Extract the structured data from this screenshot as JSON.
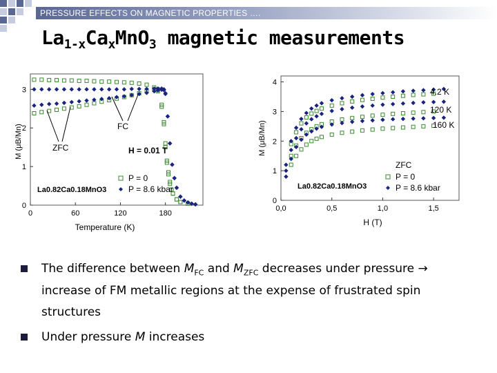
{
  "header": {
    "text": "PRESSURE EFFECTS ON MAGNETIC PROPERTIES …."
  },
  "title": {
    "prefix": "La",
    "sub1": "1-x",
    "mid": "Ca",
    "sub2": "x",
    "suffix": "MnO",
    "sub3": "3",
    "rest": " magnetic measurements"
  },
  "colors": {
    "p0": "#3a8a2e",
    "p86": "#1a237e",
    "accent": "#5a6794"
  },
  "chart_data": [
    {
      "type": "scatter",
      "xlabel": "Temperature (K)",
      "ylabel": "M (μB/Mn)",
      "xticks": [
        "0",
        "60",
        "120",
        "180"
      ],
      "yticks": [
        "0",
        "1",
        "2",
        "3"
      ],
      "xlim": [
        0,
        230
      ],
      "ylim": [
        0,
        3.4
      ],
      "annotations": {
        "zfc": "ZFC",
        "fc": "FC",
        "field": "H = 0.01 T",
        "compound": "La0.82Ca0.18MnO3"
      },
      "legend": {
        "position": "bottom-right",
        "entries": [
          "P = 0",
          "P = 8.6 kbar"
        ]
      },
      "series": [
        {
          "name": "P = 0",
          "label": "FC",
          "marker": "open-square",
          "color": "#3a8a2e",
          "x": [
            5,
            15,
            25,
            35,
            45,
            55,
            65,
            75,
            85,
            95,
            105,
            115,
            125,
            135,
            145,
            155,
            165,
            170,
            175,
            178,
            180,
            182,
            184,
            186,
            188,
            190,
            195,
            200,
            210
          ],
          "y": [
            3.25,
            3.25,
            3.24,
            3.24,
            3.23,
            3.23,
            3.22,
            3.22,
            3.21,
            3.2,
            3.2,
            3.19,
            3.18,
            3.17,
            3.15,
            3.12,
            3.05,
            2.95,
            2.55,
            2.1,
            1.5,
            1.1,
            0.8,
            0.55,
            0.4,
            0.3,
            0.15,
            0.08,
            0.04
          ]
        },
        {
          "name": "P = 0",
          "label": "ZFC",
          "marker": "open-square",
          "color": "#3a8a2e",
          "x": [
            5,
            15,
            25,
            35,
            45,
            55,
            65,
            75,
            85,
            95,
            105,
            115,
            125,
            135,
            145,
            155,
            165,
            170,
            175,
            178,
            180,
            182,
            184,
            186,
            188,
            190,
            195,
            200,
            210
          ],
          "y": [
            2.38,
            2.41,
            2.44,
            2.47,
            2.5,
            2.53,
            2.56,
            2.6,
            2.64,
            2.68,
            2.72,
            2.76,
            2.8,
            2.85,
            2.9,
            2.95,
            3.0,
            3.0,
            2.6,
            2.15,
            1.6,
            1.15,
            0.85,
            0.6,
            0.4,
            0.3,
            0.15,
            0.08,
            0.04
          ]
        },
        {
          "name": "P = 8.6 kbar",
          "label": "FC",
          "marker": "filled-diamond",
          "color": "#1a237e",
          "x": [
            5,
            15,
            25,
            35,
            45,
            55,
            65,
            75,
            85,
            95,
            105,
            115,
            125,
            135,
            145,
            155,
            165,
            170,
            175,
            178,
            180,
            183,
            186,
            189,
            192,
            195,
            200,
            205,
            210,
            215,
            220
          ],
          "y": [
            3.0,
            3.0,
            3.0,
            3.0,
            3.0,
            3.0,
            3.0,
            3.0,
            3.0,
            3.0,
            3.0,
            3.0,
            3.0,
            3.01,
            3.01,
            3.01,
            3.02,
            3.02,
            3.02,
            3.0,
            2.9,
            2.3,
            1.6,
            1.05,
            0.7,
            0.45,
            0.22,
            0.12,
            0.07,
            0.04,
            0.02
          ]
        },
        {
          "name": "P = 8.6 kbar",
          "label": "ZFC",
          "marker": "filled-diamond",
          "color": "#1a237e",
          "x": [
            5,
            15,
            25,
            35,
            45,
            55,
            65,
            75,
            85,
            95,
            105,
            115,
            125,
            135,
            145,
            155,
            165,
            170,
            175,
            178,
            180,
            183,
            186,
            189,
            192,
            195,
            200,
            205,
            210,
            215,
            220
          ],
          "y": [
            2.58,
            2.6,
            2.62,
            2.63,
            2.65,
            2.67,
            2.69,
            2.71,
            2.73,
            2.75,
            2.77,
            2.8,
            2.82,
            2.85,
            2.88,
            2.91,
            2.95,
            2.97,
            2.99,
            2.98,
            2.88,
            2.3,
            1.6,
            1.05,
            0.7,
            0.45,
            0.22,
            0.12,
            0.07,
            0.04,
            0.02
          ]
        }
      ]
    },
    {
      "type": "scatter",
      "xlabel": "H (T)",
      "ylabel": "M (μB/Mn)",
      "xticks": [
        "0,0",
        "0,5",
        "1,0",
        "1,5"
      ],
      "yticks": [
        "0",
        "1",
        "2",
        "3",
        "4"
      ],
      "xlim": [
        0,
        1.75
      ],
      "ylim": [
        0,
        4.2
      ],
      "annotations": {
        "mode": "ZFC",
        "compound": "La0.82Ca0.18MnO3",
        "temps": [
          "4.2 K",
          "120 K",
          "160 K"
        ]
      },
      "legend": {
        "position": "bottom-right",
        "entries": [
          "P = 0",
          "P = 8.6 kbar"
        ]
      },
      "series": [
        {
          "name": "P = 0",
          "label": "4.2 K",
          "marker": "open-square",
          "color": "#3a8a2e",
          "x": [
            0.1,
            0.15,
            0.2,
            0.25,
            0.3,
            0.35,
            0.4,
            0.5,
            0.6,
            0.7,
            0.8,
            0.9,
            1.0,
            1.1,
            1.2,
            1.3,
            1.4,
            1.5
          ],
          "y": [
            1.9,
            2.3,
            2.6,
            2.8,
            2.93,
            3.02,
            3.1,
            3.2,
            3.28,
            3.34,
            3.39,
            3.43,
            3.47,
            3.5,
            3.53,
            3.56,
            3.58,
            3.6
          ]
        },
        {
          "name": "P = 0",
          "label": "120 K",
          "marker": "open-square",
          "color": "#3a8a2e",
          "x": [
            0.1,
            0.15,
            0.2,
            0.25,
            0.3,
            0.35,
            0.4,
            0.5,
            0.6,
            0.7,
            0.8,
            0.9,
            1.0,
            1.1,
            1.2,
            1.3,
            1.4,
            1.5
          ],
          "y": [
            1.5,
            1.85,
            2.1,
            2.28,
            2.4,
            2.5,
            2.57,
            2.66,
            2.73,
            2.78,
            2.82,
            2.86,
            2.89,
            2.92,
            2.94,
            2.96,
            2.98,
            3.0
          ]
        },
        {
          "name": "P = 0",
          "label": "160 K",
          "marker": "open-square",
          "color": "#3a8a2e",
          "x": [
            0.1,
            0.15,
            0.2,
            0.25,
            0.3,
            0.35,
            0.4,
            0.5,
            0.6,
            0.7,
            0.8,
            0.9,
            1.0,
            1.1,
            1.2,
            1.3,
            1.4,
            1.5
          ],
          "y": [
            1.2,
            1.5,
            1.72,
            1.88,
            2.0,
            2.08,
            2.14,
            2.22,
            2.28,
            2.32,
            2.36,
            2.39,
            2.42,
            2.44,
            2.46,
            2.48,
            2.5,
            2.52
          ]
        },
        {
          "name": "P = 8.6 kbar",
          "label": "4.2 K",
          "marker": "filled-diamond",
          "color": "#1a237e",
          "x": [
            0.05,
            0.1,
            0.15,
            0.2,
            0.25,
            0.3,
            0.35,
            0.4,
            0.5,
            0.6,
            0.7,
            0.8,
            0.9,
            1.0,
            1.1,
            1.2,
            1.3,
            1.4,
            1.5,
            1.6
          ],
          "y": [
            1.2,
            2.0,
            2.45,
            2.75,
            2.95,
            3.1,
            3.2,
            3.28,
            3.38,
            3.45,
            3.5,
            3.55,
            3.59,
            3.62,
            3.65,
            3.68,
            3.7,
            3.72,
            3.74,
            3.76
          ]
        },
        {
          "name": "P = 8.6 kbar",
          "label": "120 K",
          "marker": "filled-diamond",
          "color": "#1a237e",
          "x": [
            0.05,
            0.1,
            0.15,
            0.2,
            0.25,
            0.3,
            0.35,
            0.4,
            0.5,
            0.6,
            0.7,
            0.8,
            0.9,
            1.0,
            1.1,
            1.2,
            1.3,
            1.4,
            1.5,
            1.6
          ],
          "y": [
            1.0,
            1.7,
            2.1,
            2.4,
            2.6,
            2.74,
            2.84,
            2.92,
            3.02,
            3.08,
            3.13,
            3.17,
            3.2,
            3.23,
            3.25,
            3.27,
            3.29,
            3.31,
            3.32,
            3.33
          ]
        },
        {
          "name": "P = 8.6 kbar",
          "label": "160 K",
          "marker": "filled-diamond",
          "color": "#1a237e",
          "x": [
            0.05,
            0.1,
            0.15,
            0.2,
            0.25,
            0.3,
            0.35,
            0.4,
            0.5,
            0.6,
            0.7,
            0.8,
            0.9,
            1.0,
            1.1,
            1.2,
            1.3,
            1.4,
            1.5,
            1.6
          ],
          "y": [
            0.8,
            1.4,
            1.8,
            2.05,
            2.22,
            2.33,
            2.42,
            2.48,
            2.56,
            2.61,
            2.65,
            2.68,
            2.7,
            2.72,
            2.74,
            2.75,
            2.76,
            2.77,
            2.78,
            2.79
          ]
        }
      ]
    }
  ],
  "bullets": [
    {
      "lines": [
        {
          "pre": "The difference between ",
          "v1": "M",
          "s1": "FC",
          "mid": " and ",
          "v2": "M",
          "s2": "ZFC",
          "post": " decreases under pressure →"
        },
        {
          "text": "increase of FM metallic regions at the expense of frustrated spin"
        },
        {
          "text": "structures"
        }
      ]
    },
    {
      "lines": [
        {
          "pre": "Under pressure ",
          "v1": "M",
          "post": " increases"
        }
      ]
    }
  ]
}
